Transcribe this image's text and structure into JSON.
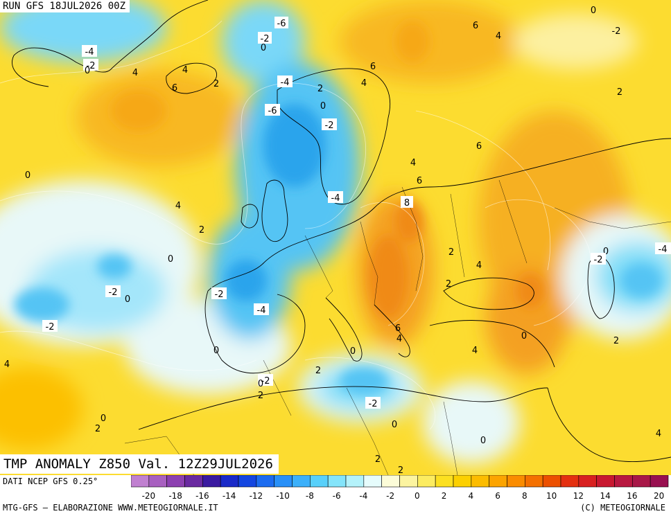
{
  "header": {
    "run_label": "RUN GFS 18JUL2026 00Z"
  },
  "map": {
    "title": "TMP ANOMALY Z850 Val. 12Z29JUL2026",
    "contour_labels": [
      "-6",
      "-4",
      "-2",
      "0",
      "0",
      "2",
      "4",
      "6",
      "8",
      "-6",
      "-4",
      "-2",
      "0",
      "2",
      "4",
      "6",
      "-2",
      "0",
      "2",
      "4",
      "6",
      "4",
      "2",
      "0",
      "-2",
      "0",
      "-2",
      "0",
      "4",
      "-4",
      "2",
      "0",
      "-2",
      "-4",
      "-2",
      "4",
      "6",
      "2",
      "4",
      "6",
      "0",
      "2",
      "-2",
      "0",
      "2",
      "4",
      "2",
      "-2",
      "0",
      "0",
      "2",
      "4",
      "2",
      "0",
      "0",
      "4",
      "6",
      "2",
      "-2",
      "-4",
      "0",
      "4"
    ]
  },
  "footer": {
    "data_source": "DATI NCEP GFS 0.25°",
    "credit": "MTG-GFS — ELABORAZIONE WWW.METEOGIORNALE.IT",
    "copyright": "(C) METEOGIORNALE"
  },
  "legend": {
    "tick_labels": [
      "-20",
      "-18",
      "-16",
      "-14",
      "-12",
      "-10",
      "-8",
      "-6",
      "-4",
      "-2",
      "0",
      "2",
      "4",
      "6",
      "8",
      "10",
      "12",
      "14",
      "16",
      "20"
    ],
    "colors": [
      "#c080d0",
      "#a860c0",
      "#8c40b0",
      "#6a2aa0",
      "#3a1aa0",
      "#1a2ac8",
      "#1446e0",
      "#1c6cf0",
      "#2890f8",
      "#3cb0fa",
      "#58d0fa",
      "#84e4fa",
      "#b4f2fa",
      "#e6fcfc",
      "#fcfcd8",
      "#fcf4a0",
      "#fcec60",
      "#fce020",
      "#fcd000",
      "#fcbc00",
      "#fca400",
      "#fa8c00",
      "#f47000",
      "#ec5000",
      "#e43010",
      "#d82020",
      "#c81830",
      "#b81840",
      "#a81848",
      "#981050"
    ]
  },
  "colors": {
    "warm_core": "#f4a020",
    "cold_core": "#2aa4ec",
    "neutral": "#e8f8f8"
  }
}
